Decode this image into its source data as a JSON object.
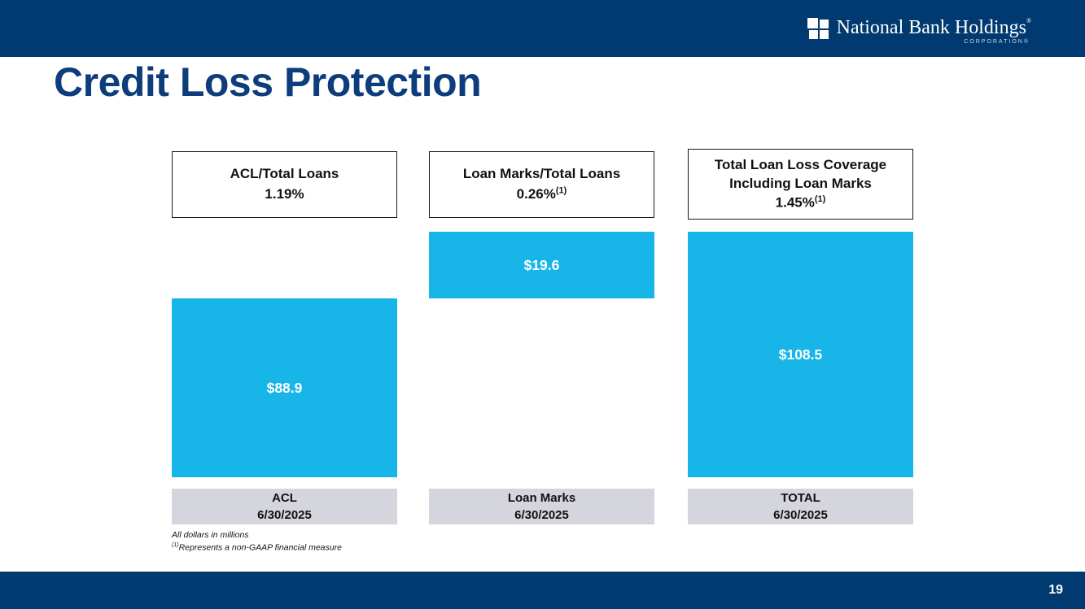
{
  "header": {
    "logo": {
      "name": "National Bank Holdings",
      "name_mark": "®",
      "sub": "CORPORATION®"
    }
  },
  "title": "Credit Loss Protection",
  "panels": [
    {
      "header_title": "ACL/Total Loans",
      "ratio": "1.19%",
      "ratio_note": "",
      "bar_value": "$88.9",
      "label_line1": "ACL",
      "label_line2": "6/30/2025"
    },
    {
      "header_title": "Loan Marks/Total Loans",
      "ratio": "0.26%",
      "ratio_note": "(1)",
      "bar_value": "$19.6",
      "label_line1": "Loan Marks",
      "label_line2": "6/30/2025"
    },
    {
      "header_title": "Total Loan Loss Coverage Including Loan Marks",
      "ratio": "1.45%",
      "ratio_note": "(1)",
      "bar_value": "$108.5",
      "label_line1": "TOTAL",
      "label_line2": "6/30/2025"
    }
  ],
  "footnotes": {
    "line1": "All dollars in millions",
    "note_marker": "(1)",
    "note_text": "Represents a non-GAAP financial measure"
  },
  "footer": {
    "page_number": "19"
  },
  "colors": {
    "navy": "#003a70",
    "title_navy": "#0d3d7c",
    "bar_cyan": "#18b5e9",
    "label_gray": "#d5d5dd"
  },
  "chart_data": {
    "type": "bar",
    "title": "Credit Loss Protection",
    "unit": "USD millions",
    "categories": [
      "ACL 6/30/2025",
      "Loan Marks 6/30/2025",
      "TOTAL 6/30/2025"
    ],
    "values": [
      88.9,
      19.6,
      108.5
    ],
    "data_labels": [
      "$88.9",
      "$19.6",
      "$108.5"
    ],
    "panel_headers": [
      "ACL/Total Loans 1.19%",
      "Loan Marks/Total Loans 0.26%(1)",
      "Total Loan Loss Coverage Including Loan Marks 1.45%(1)"
    ],
    "ratios_to_total_loans": [
      "1.19%",
      "0.26%",
      "1.45%"
    ],
    "non_gaap_flags": [
      false,
      true,
      true
    ],
    "bar_color": "#18b5e9",
    "legend": "none",
    "grid": "off",
    "notes": [
      "All dollars in millions",
      "(1) Represents a non-GAAP financial measure"
    ],
    "layout_hint": "schematic stacked composition: TOTAL bar spans full height (top to baseline); Loan Marks bar occupies the top segment; ACL bar occupies the bottom segment; heights are not linearly proportional to values"
  }
}
